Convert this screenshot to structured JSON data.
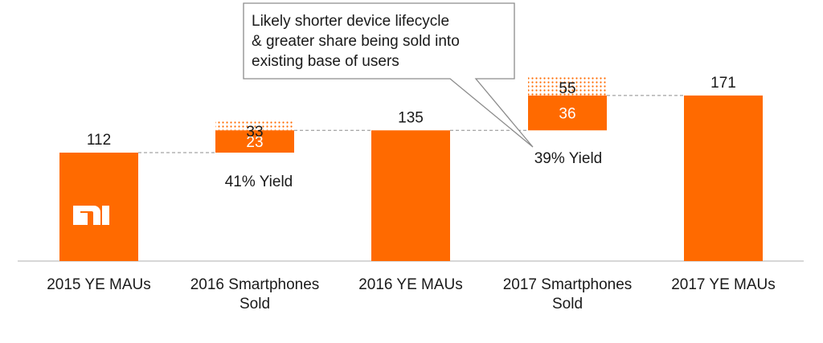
{
  "colors": {
    "accent": "#FF6A00",
    "text": "#1a1a1a",
    "baseline": "#bfbfbf",
    "connector": "#8c8c8c",
    "callout_border": "#8c8c8c"
  },
  "logo_text": "mi",
  "chart_data": {
    "type": "waterfall",
    "ylim": [
      0,
      180
    ],
    "categories": [
      [
        "2015 YE MAUs"
      ],
      [
        "2016 Smartphones",
        "Sold"
      ],
      [
        "2016 YE MAUs"
      ],
      [
        "2017 Smartphones",
        "Sold"
      ],
      [
        "2017 YE MAUs"
      ]
    ],
    "totals": [
      {
        "category_index": 0,
        "value": 112,
        "label": "112"
      },
      {
        "category_index": 2,
        "value": 135,
        "label": "135"
      },
      {
        "category_index": 4,
        "value": 171,
        "label": "171"
      }
    ],
    "increments": [
      {
        "category_index": 1,
        "base": 112,
        "added": 23,
        "added_label": "23",
        "sold": 33,
        "sold_label": "33",
        "yield_label": "41% Yield"
      },
      {
        "category_index": 3,
        "base": 135,
        "added": 36,
        "added_label": "36",
        "sold": 55,
        "sold_label": "55",
        "yield_label": "39% Yield"
      }
    ],
    "callout": {
      "lines": [
        "Likely shorter device lifecycle",
        "& greater share being sold into",
        "existing base of users"
      ],
      "points_to_category_index": 3
    }
  }
}
